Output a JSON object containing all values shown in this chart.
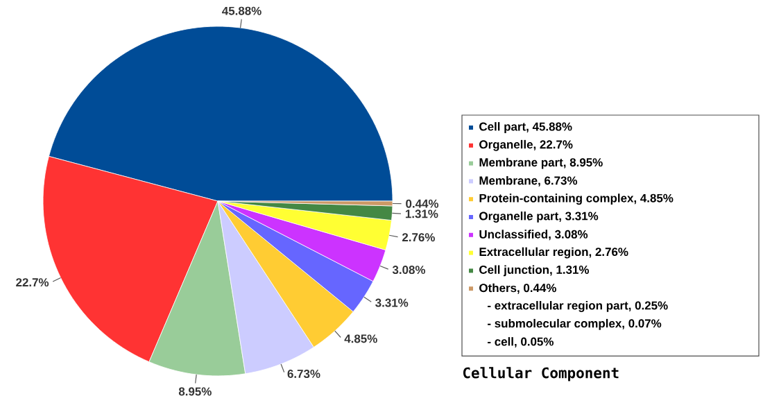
{
  "chart_data": {
    "type": "pie",
    "title": "Cellular Component",
    "categories": [
      "Cell part, 45.88%",
      "Organelle, 22.7%",
      "Membrane part, 8.95%",
      "Membrane, 6.73%",
      "Protein-containing complex, 4.85%",
      "Organelle part, 3.31%",
      "Unclassified, 3.08%",
      "Extracellular region, 2.76%",
      "Cell junction, 1.31%",
      "Others, 0.44%"
    ],
    "values": [
      45.88,
      22.7,
      8.95,
      6.73,
      4.85,
      3.31,
      3.08,
      2.76,
      1.31,
      0.44
    ],
    "value_labels": [
      "45.88%",
      "22.7%",
      "8.95%",
      "6.73%",
      "4.85%",
      "3.31%",
      "3.08%",
      "2.76%",
      "1.31%",
      "0.44%"
    ],
    "colors": [
      "#004c97",
      "#ff3333",
      "#99cc99",
      "#ccccff",
      "#ffcc33",
      "#6666ff",
      "#cc33ff",
      "#ffff33",
      "#448844",
      "#cc9966"
    ],
    "data_labels": true,
    "legend": "right",
    "annotations": [
      "- extracellular region part, 0.25%",
      "- submolecular complex, 0.07%",
      "- cell, 0.05%"
    ]
  }
}
